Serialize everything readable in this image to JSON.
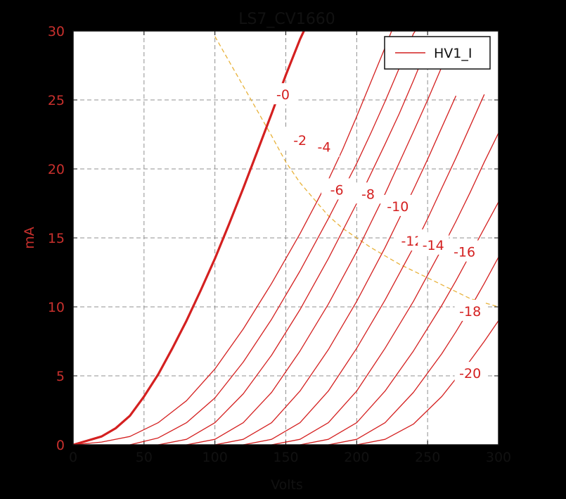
{
  "chart_data": {
    "type": "line",
    "title": "LS7_CV1660",
    "xlabel": "Volts",
    "ylabel": "mA",
    "xlim": [
      0,
      300
    ],
    "ylim": [
      0,
      30
    ],
    "xticks": [
      0,
      50,
      100,
      150,
      200,
      250,
      300
    ],
    "yticks": [
      0,
      5,
      10,
      15,
      20,
      25,
      30
    ],
    "grid": true,
    "legend": {
      "placement": "top-right",
      "entries": [
        "HV1_I"
      ]
    },
    "colors": {
      "curve": "#d42020",
      "tick_labels": "#c8302d",
      "dissipation": "#e8b23a",
      "grid": "#909090",
      "plot_bg": "#ffffff",
      "page_bg": "#000000"
    },
    "series": [
      {
        "label": "-0",
        "values": [
          [
            0,
            0
          ],
          [
            10,
            0.3
          ],
          [
            20,
            0.6
          ],
          [
            30,
            1.2
          ],
          [
            40,
            2.1
          ],
          [
            50,
            3.5
          ],
          [
            60,
            5.1
          ],
          [
            70,
            7.0
          ],
          [
            80,
            9.0
          ],
          [
            90,
            11.2
          ],
          [
            100,
            13.5
          ],
          [
            110,
            16.0
          ],
          [
            120,
            18.6
          ],
          [
            130,
            21.3
          ],
          [
            140,
            24.0
          ],
          [
            150,
            26.8
          ],
          [
            160,
            29.4
          ],
          [
            165,
            30.5
          ]
        ]
      },
      {
        "label": "-2",
        "values": [
          [
            0,
            0
          ],
          [
            20,
            0.2
          ],
          [
            40,
            0.6
          ],
          [
            60,
            1.6
          ],
          [
            80,
            3.2
          ],
          [
            100,
            5.5
          ],
          [
            120,
            8.4
          ],
          [
            140,
            11.7
          ],
          [
            160,
            15.3
          ],
          [
            180,
            19.2
          ],
          [
            190,
            21.4
          ],
          [
            200,
            23.8
          ],
          [
            210,
            26.3
          ],
          [
            220,
            28.8
          ],
          [
            225,
            30.1
          ]
        ]
      },
      {
        "label": "-4",
        "values": [
          [
            40,
            0
          ],
          [
            60,
            0.5
          ],
          [
            80,
            1.6
          ],
          [
            100,
            3.4
          ],
          [
            120,
            6.0
          ],
          [
            140,
            9.1
          ],
          [
            160,
            12.6
          ],
          [
            180,
            16.4
          ],
          [
            200,
            20.4
          ],
          [
            210,
            22.6
          ],
          [
            220,
            24.9
          ],
          [
            230,
            27.3
          ],
          [
            240,
            29.8
          ],
          [
            242,
            30.1
          ]
        ]
      },
      {
        "label": "-6",
        "values": [
          [
            60,
            0
          ],
          [
            80,
            0.4
          ],
          [
            100,
            1.6
          ],
          [
            120,
            3.7
          ],
          [
            140,
            6.5
          ],
          [
            160,
            9.8
          ],
          [
            180,
            13.5
          ],
          [
            200,
            17.5
          ],
          [
            220,
            21.8
          ],
          [
            230,
            24.0
          ],
          [
            240,
            26.4
          ],
          [
            250,
            28.9
          ]
        ]
      },
      {
        "label": "-8",
        "values": [
          [
            80,
            0
          ],
          [
            100,
            0.4
          ],
          [
            120,
            1.6
          ],
          [
            140,
            3.8
          ],
          [
            160,
            6.8
          ],
          [
            180,
            10.2
          ],
          [
            200,
            14.0
          ],
          [
            220,
            18.2
          ],
          [
            240,
            22.7
          ],
          [
            250,
            25.0
          ],
          [
            260,
            27.4
          ],
          [
            265,
            28.6
          ]
        ]
      },
      {
        "label": "-10",
        "values": [
          [
            100,
            0
          ],
          [
            120,
            0.4
          ],
          [
            140,
            1.6
          ],
          [
            160,
            3.9
          ],
          [
            180,
            6.9
          ],
          [
            200,
            10.4
          ],
          [
            220,
            14.3
          ],
          [
            240,
            18.5
          ],
          [
            250,
            20.7
          ],
          [
            260,
            23.0
          ],
          [
            270,
            25.3
          ]
        ]
      },
      {
        "label": "-12",
        "values": [
          [
            120,
            0
          ],
          [
            140,
            0.4
          ],
          [
            160,
            1.6
          ],
          [
            180,
            3.9
          ],
          [
            200,
            7.0
          ],
          [
            220,
            10.5
          ],
          [
            240,
            14.3
          ],
          [
            250,
            16.4
          ],
          [
            260,
            18.6
          ],
          [
            270,
            20.8
          ],
          [
            280,
            23.1
          ],
          [
            290,
            25.4
          ]
        ]
      },
      {
        "label": "-14",
        "values": [
          [
            140,
            0
          ],
          [
            160,
            0.4
          ],
          [
            180,
            1.6
          ],
          [
            200,
            3.9
          ],
          [
            220,
            7.0
          ],
          [
            240,
            10.4
          ],
          [
            260,
            14.2
          ],
          [
            270,
            16.2
          ],
          [
            280,
            18.3
          ],
          [
            290,
            20.5
          ],
          [
            300,
            22.6
          ]
        ]
      },
      {
        "label": "-16",
        "values": [
          [
            160,
            0
          ],
          [
            180,
            0.4
          ],
          [
            200,
            1.6
          ],
          [
            220,
            3.9
          ],
          [
            240,
            6.8
          ],
          [
            260,
            10.1
          ],
          [
            270,
            11.9
          ],
          [
            280,
            13.8
          ],
          [
            290,
            15.7
          ],
          [
            300,
            17.6
          ]
        ]
      },
      {
        "label": "-18",
        "values": [
          [
            180,
            0
          ],
          [
            200,
            0.4
          ],
          [
            220,
            1.6
          ],
          [
            240,
            3.8
          ],
          [
            260,
            6.6
          ],
          [
            270,
            8.2
          ],
          [
            280,
            9.9
          ],
          [
            290,
            11.7
          ],
          [
            300,
            13.6
          ]
        ]
      },
      {
        "label": "-20",
        "values": [
          [
            200,
            0
          ],
          [
            220,
            0.4
          ],
          [
            240,
            1.5
          ],
          [
            260,
            3.5
          ],
          [
            270,
            4.8
          ],
          [
            280,
            6.1
          ],
          [
            290,
            7.5
          ],
          [
            300,
            9.0
          ]
        ]
      }
    ],
    "dissipation_curve": [
      [
        100,
        29.6
      ],
      [
        110,
        27.8
      ],
      [
        120,
        26.0
      ],
      [
        130,
        24.2
      ],
      [
        140,
        22.4
      ],
      [
        150,
        20.5
      ],
      [
        160,
        19.0
      ],
      [
        170,
        17.8
      ],
      [
        180,
        16.6
      ],
      [
        190,
        15.7
      ],
      [
        200,
        15.0
      ],
      [
        210,
        14.3
      ],
      [
        220,
        13.7
      ],
      [
        230,
        13.1
      ],
      [
        240,
        12.6
      ],
      [
        250,
        12.1
      ],
      [
        260,
        11.6
      ],
      [
        270,
        11.1
      ],
      [
        280,
        10.6
      ],
      [
        290,
        10.3
      ],
      [
        300,
        10.0
      ]
    ],
    "curve_labels": [
      {
        "text": "-0",
        "x": 148,
        "y": 25.4
      },
      {
        "text": "-2",
        "x": 160,
        "y": 22.1
      },
      {
        "text": "-4",
        "x": 177,
        "y": 21.6
      },
      {
        "text": "-6",
        "x": 186,
        "y": 18.5
      },
      {
        "text": "-8",
        "x": 208,
        "y": 18.2
      },
      {
        "text": "-10",
        "x": 229,
        "y": 17.3
      },
      {
        "text": "-12",
        "x": 239,
        "y": 14.8
      },
      {
        "text": "-14",
        "x": 254,
        "y": 14.5
      },
      {
        "text": "-16",
        "x": 276,
        "y": 14.0
      },
      {
        "text": "-18",
        "x": 280,
        "y": 9.7
      },
      {
        "text": "-20",
        "x": 280,
        "y": 5.2
      }
    ]
  }
}
